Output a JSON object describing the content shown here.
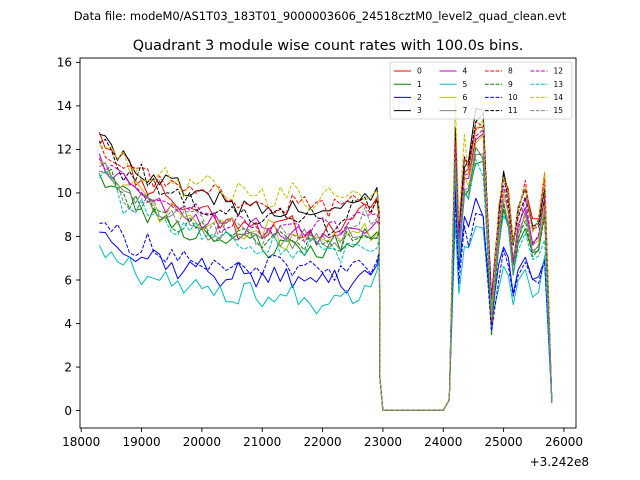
{
  "chart_data": {
    "type": "line",
    "suptitle": "Data file: modeM0/AS1T03_183T01_9000003606_24518cztM0_level2_quad_clean.evt",
    "title": "Quadrant 3 module wise count rates with 100.0s bins.",
    "xlabel": "",
    "ylabel": "",
    "x_offset_label": "+3.242e8",
    "xlim": [
      17980,
      26200
    ],
    "ylim": [
      -0.8,
      16.2
    ],
    "xticks": [
      18000,
      19000,
      20000,
      21000,
      22000,
      23000,
      24000,
      25000,
      26000
    ],
    "yticks": [
      0,
      2,
      4,
      6,
      8,
      10,
      12,
      14,
      16
    ],
    "x_start": 18300,
    "x_step": 100,
    "gap_levels": {
      "pre": [
        0.02,
        0.1,
        0.4,
        2,
        4,
        6,
        8
      ],
      "post": [
        0.3,
        0.8,
        2.2,
        5
      ]
    },
    "segments": [
      {
        "start": 18300,
        "end": 22900,
        "kind": "series"
      },
      {
        "start": 23000,
        "end": 24000,
        "kind": "zero"
      },
      {
        "start": 24100,
        "end": 25800,
        "kind": "series"
      }
    ],
    "series": [
      {
        "name": "0",
        "color": "#ff0000",
        "dash": "solid",
        "level": 12.8,
        "tail": 8.0,
        "end": 9.6,
        "peaks": [
          12.6,
          13.0,
          13.3,
          12.9
        ],
        "last": 11.1,
        "seed": 11
      },
      {
        "name": "1",
        "color": "#008000",
        "dash": "solid",
        "level": 10.9,
        "tail": 7.3,
        "end": 8.2,
        "peaks": [
          11.2,
          11.6,
          11.5,
          10.8
        ],
        "last": 9.4,
        "seed": 23
      },
      {
        "name": "2",
        "color": "#0000ff",
        "dash": "solid",
        "level": 8.2,
        "tail": 5.9,
        "end": 6.4,
        "peaks": [
          10.3,
          9.6,
          9.0,
          9.1
        ],
        "last": 7.1,
        "seed": 37
      },
      {
        "name": "3",
        "color": "#000000",
        "dash": "solid",
        "level": 12.7,
        "tail": 8.9,
        "end": 10.2,
        "peaks": [
          13.0,
          13.6,
          13.8,
          12.6
        ],
        "last": 10.0,
        "seed": 41
      },
      {
        "name": "4",
        "color": "#bf00bf",
        "dash": "solid",
        "level": 11.8,
        "tail": 8.0,
        "end": 9.0,
        "peaks": [
          12.2,
          12.4,
          12.5,
          11.7
        ],
        "last": 9.4,
        "seed": 53
      },
      {
        "name": "5",
        "color": "#00bfbf",
        "dash": "solid",
        "level": 7.6,
        "tail": 5.0,
        "end": 6.0,
        "peaks": [
          8.9,
          8.6,
          8.2,
          8.1
        ],
        "last": 6.9,
        "seed": 67
      },
      {
        "name": "6",
        "color": "#bfbf00",
        "dash": "solid",
        "level": 11.4,
        "tail": 7.8,
        "end": 8.5,
        "peaks": [
          12.1,
          12.3,
          12.4,
          11.5
        ],
        "last": 9.6,
        "seed": 71
      },
      {
        "name": "7",
        "color": "#808080",
        "dash": "solid",
        "level": 11.2,
        "tail": 7.6,
        "end": 8.6,
        "peaks": [
          11.8,
          12.0,
          11.9,
          11.2
        ],
        "last": 9.3,
        "seed": 83
      },
      {
        "name": "8",
        "color": "#ff0000",
        "dash": "dashed",
        "level": 12.4,
        "tail": 9.4,
        "end": 9.6,
        "peaks": [
          13.0,
          13.1,
          13.2,
          12.9
        ],
        "last": 10.6,
        "seed": 97
      },
      {
        "name": "9",
        "color": "#008000",
        "dash": "dashed",
        "level": 11.0,
        "tail": 7.6,
        "end": 8.4,
        "peaks": [
          11.4,
          11.8,
          11.6,
          10.9
        ],
        "last": 9.1,
        "seed": 101
      },
      {
        "name": "10",
        "color": "#0000ff",
        "dash": "dashed",
        "level": 8.6,
        "tail": 6.4,
        "end": 6.6,
        "peaks": [
          9.4,
          9.0,
          8.8,
          8.7
        ],
        "last": 7.2,
        "seed": 113
      },
      {
        "name": "11",
        "color": "#000000",
        "dash": "dashed",
        "level": 12.3,
        "tail": 8.6,
        "end": 9.9,
        "peaks": [
          13.2,
          13.4,
          13.5,
          12.4
        ],
        "last": 9.9,
        "seed": 127
      },
      {
        "name": "12",
        "color": "#bf00bf",
        "dash": "dashed",
        "level": 11.6,
        "tail": 8.2,
        "end": 9.3,
        "peaks": [
          12.4,
          12.6,
          12.7,
          11.9
        ],
        "last": 9.7,
        "seed": 131
      },
      {
        "name": "13",
        "color": "#00bfbf",
        "dash": "dashed",
        "level": 10.7,
        "tail": 7.2,
        "end": 7.9,
        "peaks": [
          11.1,
          11.3,
          11.0,
          10.5
        ],
        "last": 8.1,
        "seed": 139
      },
      {
        "name": "14",
        "color": "#bfbf00",
        "dash": "dashed",
        "level": 12.2,
        "tail": 9.7,
        "end": 10.1,
        "peaks": [
          14.2,
          12.9,
          13.1,
          12.8
        ],
        "last": 10.9,
        "seed": 149
      },
      {
        "name": "15",
        "color": "#808080",
        "dash": "dashed",
        "level": 11.0,
        "tail": 7.9,
        "end": 9.0,
        "peaks": [
          11.7,
          11.9,
          11.8,
          11.1
        ],
        "last": 9.0,
        "seed": 157
      }
    ],
    "legend": {
      "location": "top-right",
      "columns": 4
    }
  }
}
